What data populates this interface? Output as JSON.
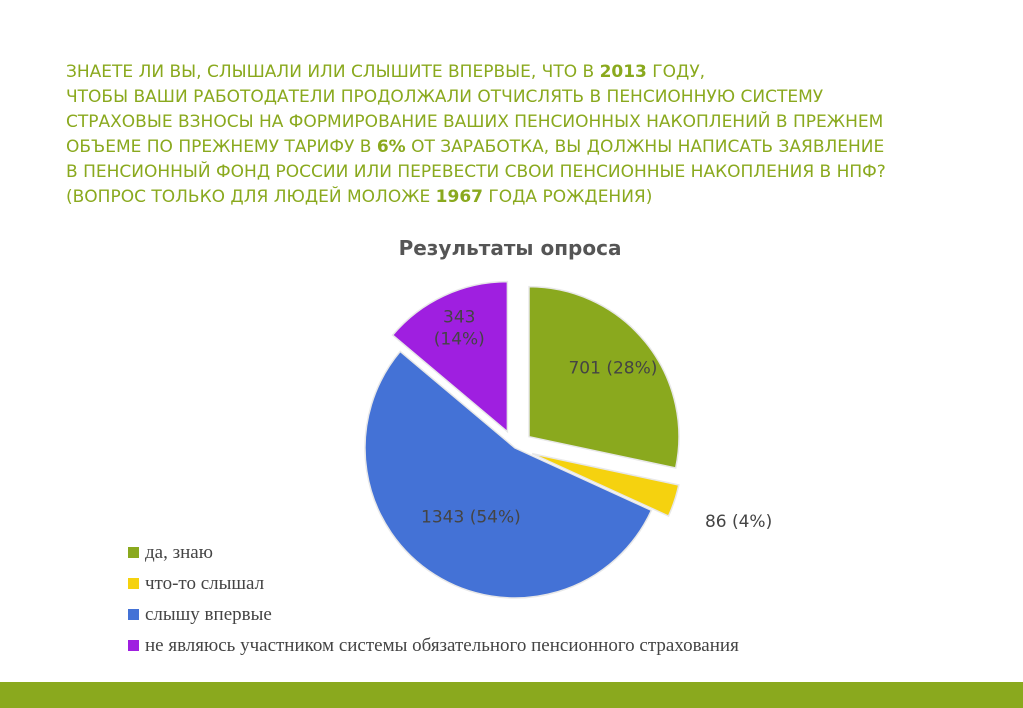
{
  "heading": {
    "lines": [
      [
        "ЗНАЕТЕ ЛИ ВЫ, СЛЫШАЛИ ИЛИ СЛЫШИТЕ ВПЕРВЫЕ, ЧТО В ",
        "2013",
        " ГОДУ,"
      ],
      [
        "ЧТОБЫ ВАШИ РАБОТОДАТЕЛИ ПРОДОЛЖАЛИ ОТЧИСЛЯТЬ В ПЕНСИОННУЮ СИСТЕМУ"
      ],
      [
        "СТРАХОВЫЕ ВЗНОСЫ НА ФОРМИРОВАНИЕ ВАШИХ ПЕНСИОННЫХ НАКОПЛЕНИЙ В ПРЕЖНЕМ"
      ],
      [
        "ОБЪЕМЕ ПО ПРЕЖНЕМУ ТАРИФУ В ",
        "6%",
        " ОТ ЗАРАБОТКА, ВЫ ДОЛЖНЫ НАПИСАТЬ ЗАЯВЛЕНИЕ"
      ],
      [
        "В ПЕНСИОННЫЙ ФОНД РОССИИ ИЛИ ПЕРЕВЕСТИ СВОИ ПЕНСИОННЫЕ НАКОПЛЕНИЯ В НПФ?"
      ],
      [
        "(ВОПРОС ТОЛЬКО ДЛЯ ЛЮДЕЙ МОЛОЖЕ ",
        "1967",
        " ГОДА РОЖДЕНИЯ)"
      ]
    ]
  },
  "chart_data": {
    "type": "pie",
    "title": "Результаты опроса",
    "slices": [
      {
        "name": "да, знаю",
        "value": 701,
        "label": "701 (28%)",
        "color": "#8aa91e"
      },
      {
        "name": "что-то слышал",
        "value": 86,
        "label": "86 (4%)",
        "color": "#f5d20f"
      },
      {
        "name": "слышу впервые",
        "value": 1343,
        "label": "1343 (54%)",
        "color": "#4472d6"
      },
      {
        "name": "не являюсь участником системы обязательного пенсионного страхования",
        "value": 343,
        "label": "343 (14%)",
        "color": "#9f1fe0"
      }
    ],
    "legend_position": "bottom-left"
  }
}
